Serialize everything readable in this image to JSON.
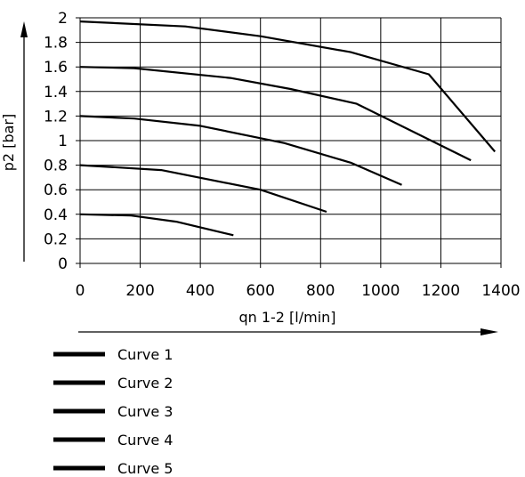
{
  "chart_data": {
    "type": "line",
    "title": "",
    "xlabel": "qn 1-2 [l/min]",
    "ylabel": "p2 [bar]",
    "xlim": [
      0,
      1400
    ],
    "ylim": [
      0,
      2
    ],
    "x_ticks": [
      "0",
      "200",
      "400",
      "600",
      "800",
      "1000",
      "1200",
      "1400"
    ],
    "y_ticks": [
      "0",
      "0.2",
      "0.4",
      "0.6",
      "0.8",
      "1",
      "1.2",
      "1.4",
      "1.6",
      "1.8",
      "2"
    ],
    "grid": true,
    "legend_position": "bottom-left",
    "color": "#000000",
    "series": [
      {
        "name": "Curve 1",
        "points": [
          [
            0,
            1.97
          ],
          [
            350,
            1.93
          ],
          [
            600,
            1.85
          ],
          [
            900,
            1.72
          ],
          [
            1160,
            1.54
          ],
          [
            1380,
            0.91
          ]
        ]
      },
      {
        "name": "Curve 2",
        "points": [
          [
            0,
            1.6
          ],
          [
            180,
            1.59
          ],
          [
            500,
            1.51
          ],
          [
            700,
            1.42
          ],
          [
            920,
            1.3
          ],
          [
            1300,
            0.84
          ]
        ]
      },
      {
        "name": "Curve 3",
        "points": [
          [
            0,
            1.2
          ],
          [
            180,
            1.18
          ],
          [
            400,
            1.12
          ],
          [
            680,
            0.98
          ],
          [
            900,
            0.82
          ],
          [
            1070,
            0.64
          ]
        ]
      },
      {
        "name": "Curve 4",
        "points": [
          [
            0,
            0.8
          ],
          [
            270,
            0.76
          ],
          [
            600,
            0.6
          ],
          [
            820,
            0.42
          ]
        ]
      },
      {
        "name": "Curve 5",
        "points": [
          [
            0,
            0.4
          ],
          [
            170,
            0.39
          ],
          [
            320,
            0.34
          ],
          [
            510,
            0.23
          ]
        ]
      }
    ]
  }
}
